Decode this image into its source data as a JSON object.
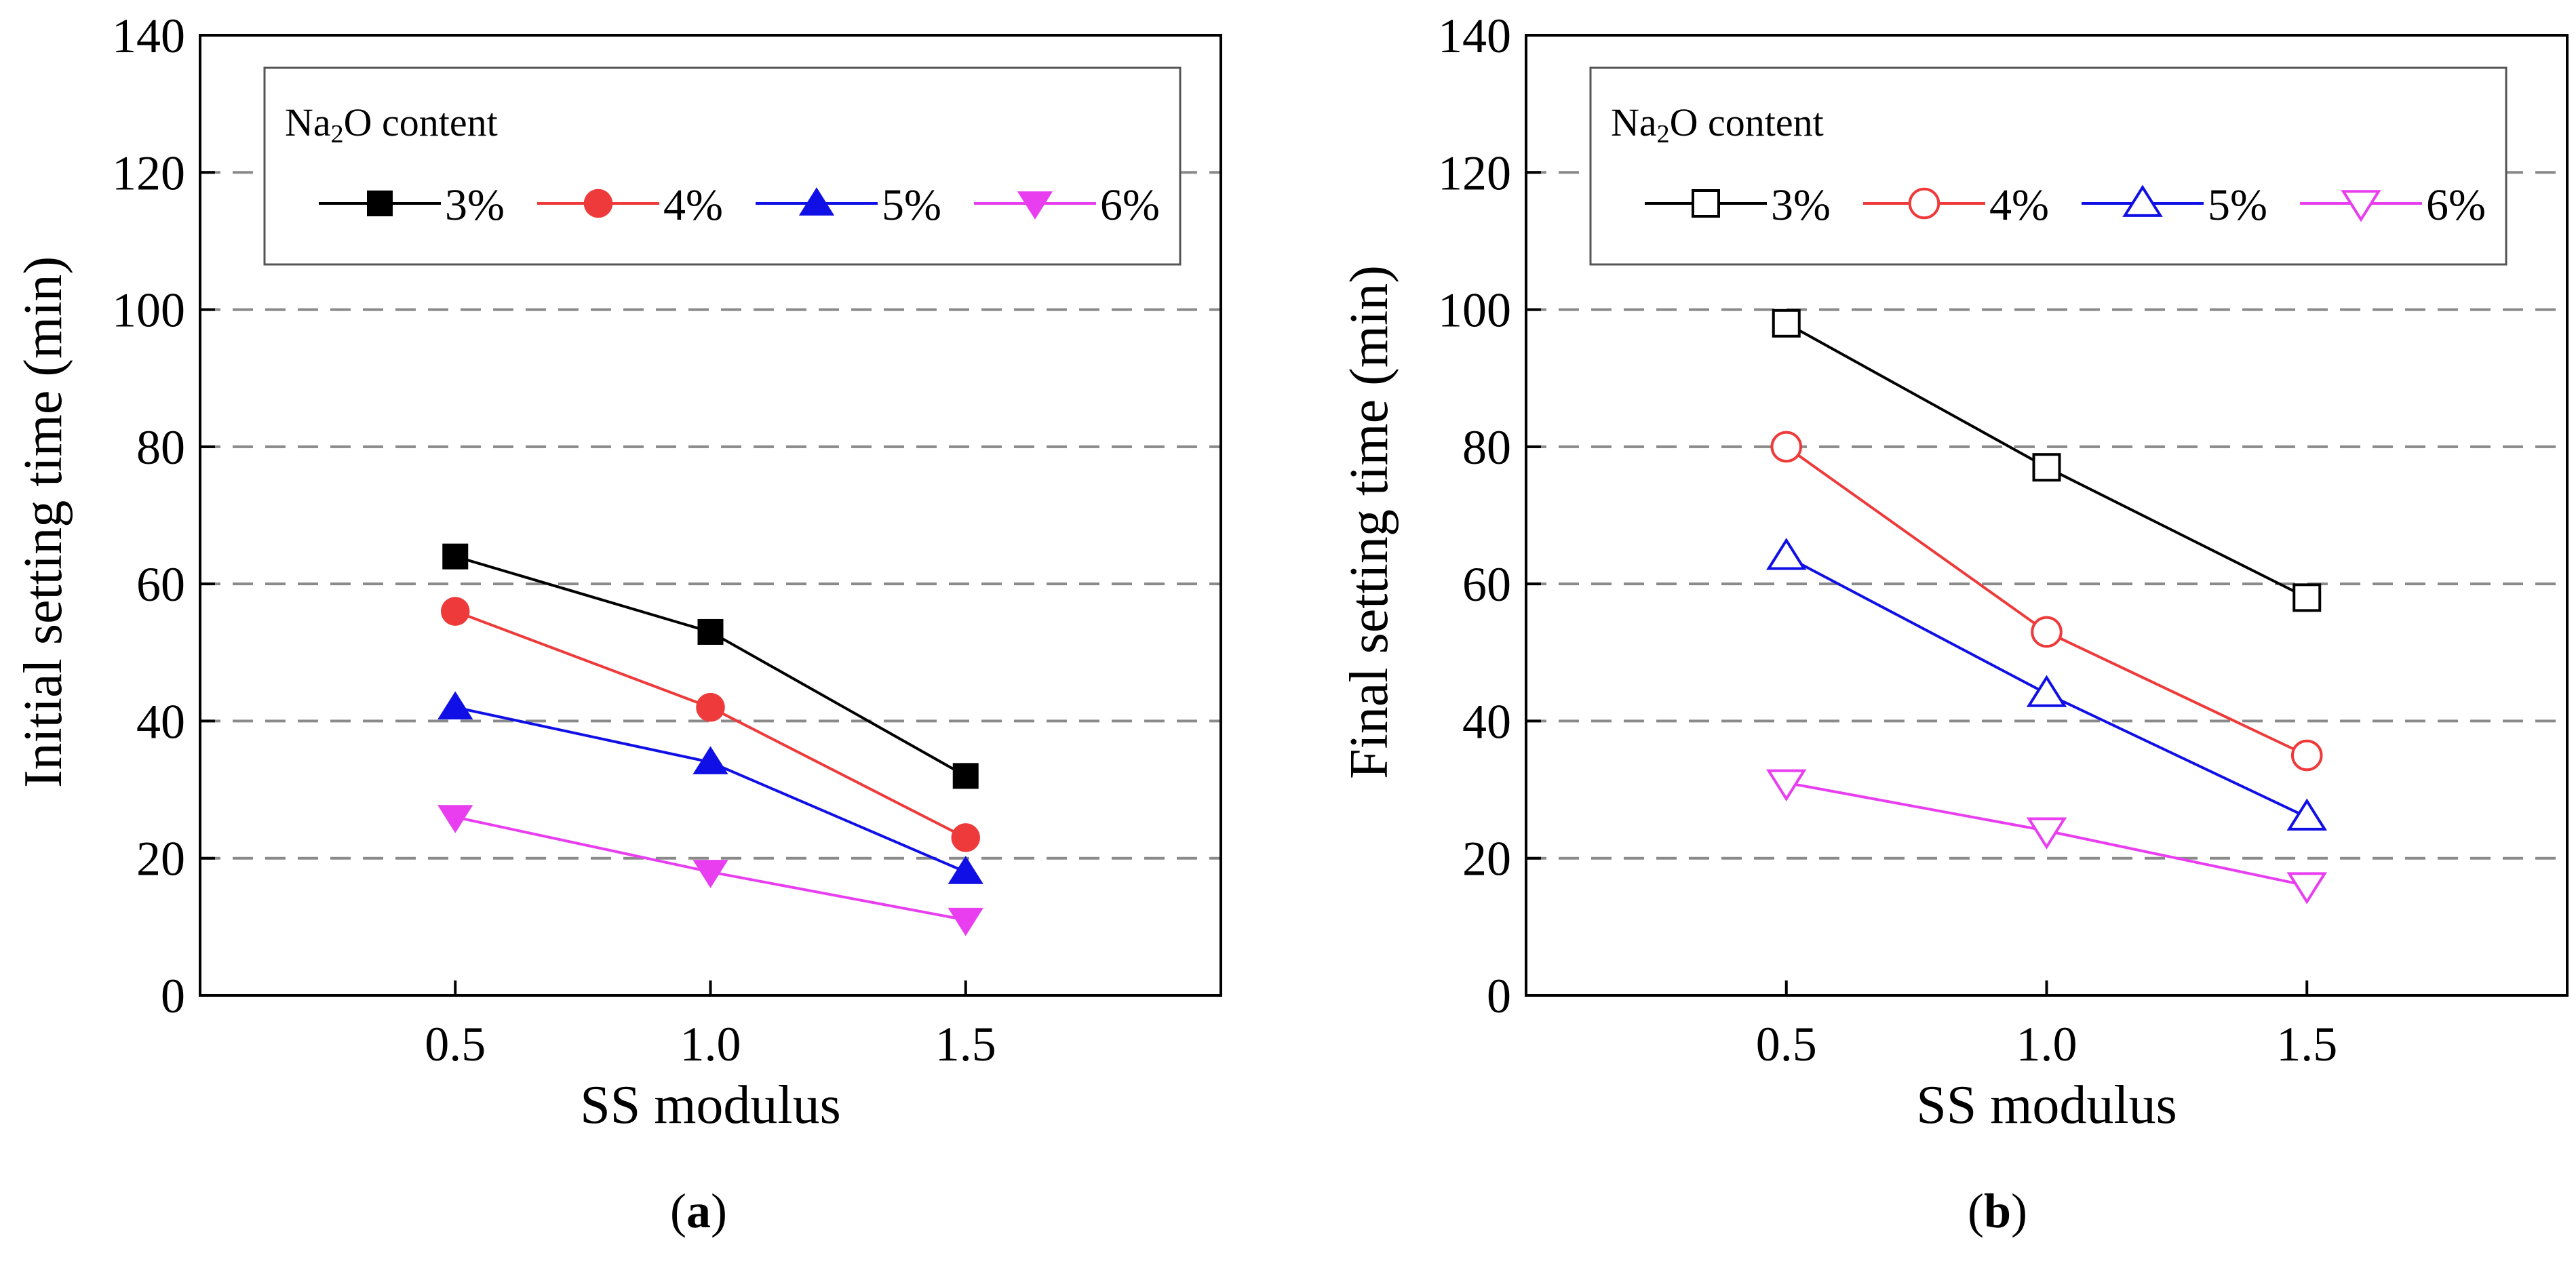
{
  "chart_data": [
    {
      "id": "a",
      "type": "line",
      "caption_letter": "a",
      "xlabel": "SS modulus",
      "ylabel": "Initial setting time (min)",
      "xlim": [
        0,
        2
      ],
      "ylim": [
        0,
        140
      ],
      "x": [
        0.5,
        1.0,
        1.5
      ],
      "x_tick_labels": [
        "0.5",
        "1.0",
        "1.5"
      ],
      "y_ticks": [
        0,
        20,
        40,
        60,
        80,
        100,
        120,
        140
      ],
      "y_tick_labels": [
        "0",
        "20",
        "40",
        "60",
        "80",
        "100",
        "120",
        "140"
      ],
      "grid": "horizontal dashed",
      "legend": {
        "title": "Na2O content",
        "title_main": "Na",
        "title_sub": "2",
        "title_rest": "O content",
        "placement": "top-left"
      },
      "series": [
        {
          "name": "3%",
          "color": "#000000",
          "marker": "square",
          "filled": true,
          "values": [
            64,
            53,
            32
          ]
        },
        {
          "name": "4%",
          "color": "#ee3a3a",
          "marker": "circle",
          "filled": true,
          "values": [
            56,
            42,
            23
          ]
        },
        {
          "name": "5%",
          "color": "#1010e6",
          "marker": "triangle-up",
          "filled": true,
          "values": [
            42,
            34,
            18
          ]
        },
        {
          "name": "6%",
          "color": "#e83ef0",
          "marker": "triangle-down",
          "filled": true,
          "values": [
            26,
            18,
            11
          ]
        }
      ]
    },
    {
      "id": "b",
      "type": "line",
      "caption_letter": "b",
      "xlabel": "SS modulus",
      "ylabel": "Final setting time (min)",
      "xlim": [
        0,
        2
      ],
      "ylim": [
        0,
        140
      ],
      "x": [
        0.5,
        1.0,
        1.5
      ],
      "x_tick_labels": [
        "0.5",
        "1.0",
        "1.5"
      ],
      "y_ticks": [
        0,
        20,
        40,
        60,
        80,
        100,
        120,
        140
      ],
      "y_tick_labels": [
        "0",
        "20",
        "40",
        "60",
        "80",
        "100",
        "120",
        "140"
      ],
      "grid": "horizontal dashed",
      "legend": {
        "title": "Na2O content",
        "title_main": "Na",
        "title_sub": "2",
        "title_rest": "O content",
        "placement": "top-left"
      },
      "series": [
        {
          "name": "3%",
          "color": "#000000",
          "marker": "square",
          "filled": false,
          "values": [
            98,
            77,
            58
          ]
        },
        {
          "name": "4%",
          "color": "#ee3a3a",
          "marker": "circle",
          "filled": false,
          "values": [
            80,
            53,
            35
          ]
        },
        {
          "name": "5%",
          "color": "#1010e6",
          "marker": "triangle-up",
          "filled": false,
          "values": [
            64,
            44,
            26
          ]
        },
        {
          "name": "6%",
          "color": "#e83ef0",
          "marker": "triangle-down",
          "filled": false,
          "values": [
            31,
            24,
            16
          ]
        }
      ]
    }
  ]
}
